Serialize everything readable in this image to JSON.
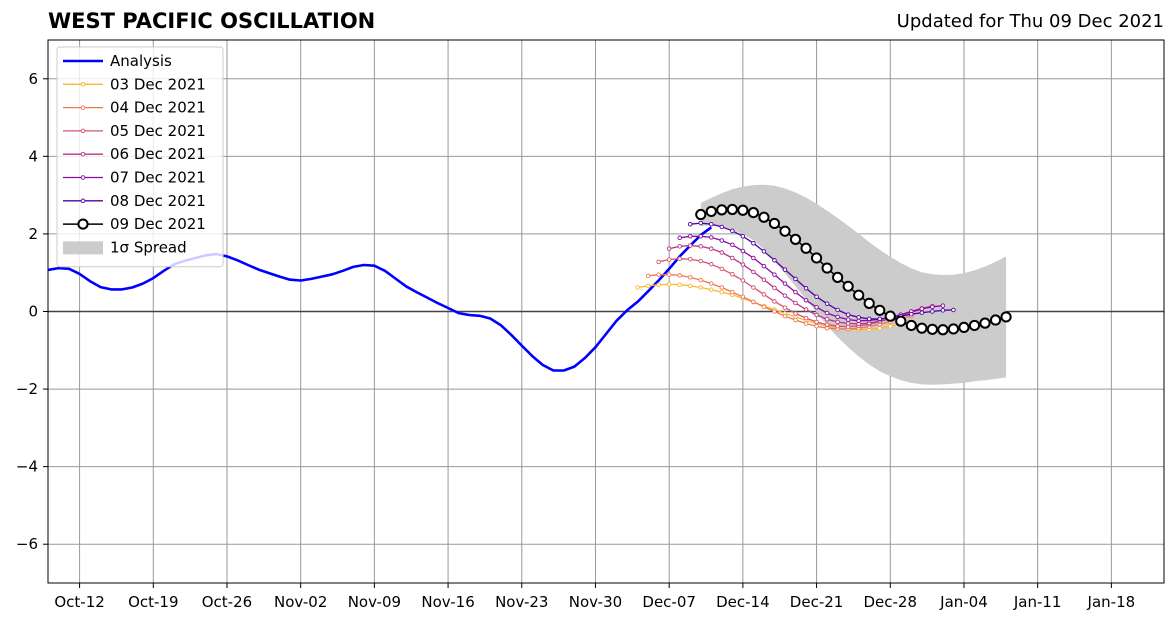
{
  "title": "WEST PACIFIC OSCILLATION",
  "updated": "Updated for Thu 09 Dec 2021",
  "chart_data": {
    "type": "line",
    "title": "WEST PACIFIC OSCILLATION",
    "subtitle": "Updated for Thu 09 Dec 2021",
    "xlabel": "",
    "ylabel": "",
    "x_axis": "date",
    "xlim": [
      "2021-10-09",
      "2022-01-23"
    ],
    "ylim": [
      -7,
      7
    ],
    "xticks": [
      {
        "date": "2021-10-12",
        "label": "Oct-12"
      },
      {
        "date": "2021-10-19",
        "label": "Oct-19"
      },
      {
        "date": "2021-10-26",
        "label": "Oct-26"
      },
      {
        "date": "2021-11-02",
        "label": "Nov-02"
      },
      {
        "date": "2021-11-09",
        "label": "Nov-09"
      },
      {
        "date": "2021-11-16",
        "label": "Nov-16"
      },
      {
        "date": "2021-11-23",
        "label": "Nov-23"
      },
      {
        "date": "2021-11-30",
        "label": "Nov-30"
      },
      {
        "date": "2021-12-07",
        "label": "Dec-07"
      },
      {
        "date": "2021-12-14",
        "label": "Dec-14"
      },
      {
        "date": "2021-12-21",
        "label": "Dec-21"
      },
      {
        "date": "2021-12-28",
        "label": "Dec-28"
      },
      {
        "date": "2022-01-04",
        "label": "Jan-04"
      },
      {
        "date": "2022-01-11",
        "label": "Jan-11"
      },
      {
        "date": "2022-01-18",
        "label": "Jan-18"
      }
    ],
    "yticks": [
      {
        "value": 6,
        "label": "6"
      },
      {
        "value": 4,
        "label": "4"
      },
      {
        "value": 2,
        "label": "2"
      },
      {
        "value": 0,
        "label": "0"
      },
      {
        "value": -2,
        "label": "−2"
      },
      {
        "value": -4,
        "label": "−4"
      },
      {
        "value": -6,
        "label": "−6"
      }
    ],
    "grid": true,
    "legend_position": "top-left",
    "series": [
      {
        "name": "Analysis",
        "color": "#0000ff",
        "style": "thick-line",
        "start": "2021-10-09",
        "values": [
          1.07,
          1.12,
          1.1,
          0.97,
          0.78,
          0.63,
          0.57,
          0.57,
          0.62,
          0.72,
          0.86,
          1.05,
          1.22,
          1.31,
          1.38,
          1.45,
          1.48,
          1.42,
          1.32,
          1.2,
          1.08,
          0.99,
          0.9,
          0.82,
          0.8,
          0.84,
          0.9,
          0.96,
          1.05,
          1.15,
          1.2,
          1.18,
          1.05,
          0.85,
          0.65,
          0.5,
          0.36,
          0.22,
          0.09,
          -0.04,
          -0.09,
          -0.11,
          -0.18,
          -0.35,
          -0.6,
          -0.88,
          -1.15,
          -1.38,
          -1.52,
          -1.52,
          -1.42,
          -1.2,
          -0.92,
          -0.58,
          -0.24,
          0.03,
          0.25,
          0.52,
          0.8,
          1.1,
          1.42,
          1.7,
          1.97,
          2.17
        ]
      },
      {
        "name": "03 Dec 2021",
        "color": "#fbb731",
        "style": "marker-line",
        "start": "2021-12-04",
        "values": [
          0.62,
          0.66,
          0.69,
          0.7,
          0.69,
          0.66,
          0.62,
          0.56,
          0.5,
          0.43,
          0.34,
          0.24,
          0.14,
          0.05,
          -0.05,
          -0.14,
          -0.23,
          -0.31,
          -0.38,
          -0.43,
          -0.46,
          -0.47,
          -0.46,
          -0.43,
          -0.38,
          -0.33
        ]
      },
      {
        "name": "04 Dec 2021",
        "color": "#ed7953",
        "style": "marker-line",
        "start": "2021-12-05",
        "values": [
          0.92,
          0.95,
          0.95,
          0.93,
          0.88,
          0.81,
          0.72,
          0.62,
          0.5,
          0.38,
          0.25,
          0.12,
          0.0,
          -0.12,
          -0.22,
          -0.31,
          -0.38,
          -0.43,
          -0.45,
          -0.45,
          -0.43,
          -0.39,
          -0.33,
          -0.26,
          -0.19,
          -0.12
        ]
      },
      {
        "name": "05 Dec 2021",
        "color": "#d5536f",
        "style": "marker-line",
        "start": "2021-12-06",
        "values": [
          1.28,
          1.34,
          1.36,
          1.35,
          1.3,
          1.22,
          1.1,
          0.96,
          0.8,
          0.62,
          0.44,
          0.26,
          0.1,
          -0.05,
          -0.17,
          -0.27,
          -0.34,
          -0.38,
          -0.39,
          -0.37,
          -0.33,
          -0.26,
          -0.18,
          -0.1,
          -0.02,
          0.05
        ]
      },
      {
        "name": "06 Dec 2021",
        "color": "#b83289",
        "style": "marker-line",
        "start": "2021-12-07",
        "values": [
          1.62,
          1.68,
          1.7,
          1.68,
          1.62,
          1.52,
          1.38,
          1.21,
          1.02,
          0.82,
          0.61,
          0.41,
          0.22,
          0.05,
          -0.09,
          -0.2,
          -0.27,
          -0.31,
          -0.32,
          -0.3,
          -0.25,
          -0.18,
          -0.09,
          0.0,
          0.08,
          0.14
        ]
      },
      {
        "name": "07 Dec 2021",
        "color": "#8b0aa5",
        "style": "marker-line",
        "start": "2021-12-08",
        "values": [
          1.9,
          1.94,
          1.94,
          1.91,
          1.83,
          1.72,
          1.56,
          1.38,
          1.17,
          0.95,
          0.72,
          0.5,
          0.29,
          0.11,
          -0.04,
          -0.14,
          -0.21,
          -0.24,
          -0.23,
          -0.2,
          -0.15,
          -0.08,
          0.0,
          0.07,
          0.12,
          0.15
        ]
      },
      {
        "name": "08 Dec 2021",
        "color": "#5302a3",
        "style": "marker-line",
        "start": "2021-12-09",
        "values": [
          2.25,
          2.28,
          2.25,
          2.18,
          2.08,
          1.94,
          1.76,
          1.55,
          1.32,
          1.08,
          0.84,
          0.6,
          0.38,
          0.2,
          0.04,
          -0.08,
          -0.15,
          -0.19,
          -0.19,
          -0.16,
          -0.12,
          -0.07,
          -0.03,
          0.0,
          0.03,
          0.04
        ]
      },
      {
        "name": "09 Dec 2021",
        "color": "#000000",
        "style": "open-circle-line",
        "start": "2021-12-10",
        "values": [
          2.5,
          2.58,
          2.62,
          2.63,
          2.61,
          2.55,
          2.43,
          2.27,
          2.07,
          1.86,
          1.63,
          1.38,
          1.12,
          0.88,
          0.65,
          0.42,
          0.21,
          0.03,
          -0.12,
          -0.25,
          -0.36,
          -0.43,
          -0.46,
          -0.47,
          -0.45,
          -0.41,
          -0.36,
          -0.3,
          -0.22,
          -0.14
        ]
      }
    ],
    "spread": {
      "name": "1σ Spread",
      "color": "#cccccc",
      "start": "2021-12-10",
      "upper": [
        2.8,
        2.93,
        3.05,
        3.15,
        3.22,
        3.26,
        3.27,
        3.24,
        3.17,
        3.07,
        2.94,
        2.78,
        2.6,
        2.41,
        2.21,
        2.0,
        1.79,
        1.59,
        1.41,
        1.25,
        1.11,
        1.01,
        0.96,
        0.94,
        0.95,
        0.99,
        1.06,
        1.16,
        1.28,
        1.42
      ],
      "lower": [
        2.2,
        2.23,
        2.2,
        2.11,
        1.99,
        1.84,
        1.6,
        1.31,
        0.98,
        0.65,
        0.32,
        -0.02,
        -0.36,
        -0.66,
        -0.92,
        -1.16,
        -1.37,
        -1.54,
        -1.67,
        -1.77,
        -1.84,
        -1.88,
        -1.89,
        -1.88,
        -1.86,
        -1.84,
        -1.8,
        -1.77,
        -1.74,
        -1.7
      ]
    }
  }
}
